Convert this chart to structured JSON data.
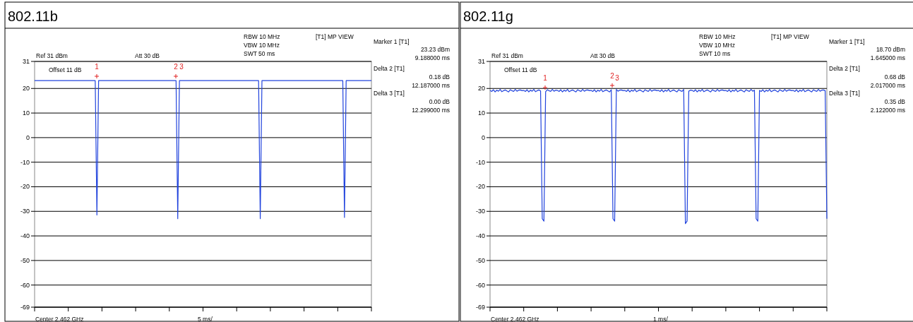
{
  "chart_data": [
    {
      "type": "line",
      "title": "802.11b",
      "categories": [
        null,
        null,
        null,
        null,
        null,
        null,
        null,
        null,
        null,
        null,
        null,
        null,
        null,
        null,
        null,
        null,
        null,
        null,
        null,
        null,
        null,
        null,
        null,
        null,
        null,
        null,
        null,
        null,
        null,
        null,
        null,
        null,
        null,
        null,
        null,
        null,
        null,
        null,
        null,
        null,
        null,
        null,
        null,
        null,
        null,
        null,
        null,
        null,
        null,
        null,
        null,
        null,
        null,
        null,
        null,
        null,
        null,
        null,
        null,
        null,
        null,
        null,
        null,
        null,
        null,
        null,
        null,
        null,
        null,
        null,
        null,
        null,
        null,
        null,
        null,
        null,
        null,
        null,
        null,
        null,
        null,
        null,
        null,
        null,
        null,
        null,
        null,
        null,
        null,
        null,
        null,
        null,
        null,
        null,
        null,
        null,
        null,
        null,
        null,
        null,
        null,
        null,
        null,
        null,
        null,
        null,
        null,
        null,
        null,
        null,
        null,
        null,
        null,
        null,
        null,
        null,
        null,
        null,
        null,
        null,
        null,
        null,
        null,
        null,
        null,
        null,
        null,
        null,
        null,
        null,
        null,
        null,
        null,
        null,
        null,
        null,
        null,
        null,
        null,
        null,
        null,
        null,
        null,
        null,
        null,
        null,
        null,
        null,
        null,
        null,
        null,
        null,
        null,
        null,
        null,
        null,
        null,
        null,
        null,
        null,
        null,
        null,
        null,
        null,
        null,
        null,
        null,
        null,
        null,
        null,
        null,
        null,
        null,
        null,
        null,
        null,
        null,
        null,
        null,
        null,
        null,
        null,
        null,
        null,
        null,
        null,
        null,
        null,
        null,
        null,
        null,
        null,
        null,
        null,
        null,
        null,
        null,
        null,
        null,
        null,
        null
      ],
      "ylim": [
        -69,
        31
      ],
      "yticks": [
        31,
        20,
        10,
        0,
        -10,
        -20,
        -30,
        -40,
        -50,
        -60,
        -69
      ],
      "grid": "y",
      "tick_labels": "y",
      "series": [
        {
          "color": "#2244dd",
          "values": [
            23.2,
            23.2,
            23.2,
            23.2,
            23.2,
            23.2,
            23.2,
            23.2,
            23.2,
            23.2,
            23.2,
            23.2,
            23.2,
            23.2,
            23.2,
            23.2,
            23.2,
            23.2,
            23.2,
            23.2,
            23.2,
            23.2,
            23.2,
            23.2,
            23.2,
            23.2,
            23.2,
            23.2,
            23.2,
            23.2,
            23.2,
            23.2,
            23.2,
            23.2,
            23.2,
            23.2,
            23.2,
            -31.5,
            23.2,
            23.2,
            23.2,
            23.2,
            23.2,
            23.2,
            23.2,
            23.2,
            23.2,
            23.2,
            23.2,
            23.2,
            23.2,
            23.2,
            23.2,
            23.2,
            23.2,
            23.2,
            23.2,
            23.2,
            23.2,
            23.2,
            23.2,
            23.2,
            23.2,
            23.2,
            23.2,
            23.2,
            23.2,
            23.2,
            23.2,
            23.2,
            23.2,
            23.2,
            23.2,
            23.2,
            23.2,
            23.2,
            23.2,
            23.2,
            23.2,
            23.2,
            23.2,
            23.2,
            23.2,
            23.2,
            23.2,
            -33,
            23.2,
            23.2,
            23.2,
            23.2,
            23.2,
            23.2,
            23.2,
            23.2,
            23.2,
            23.2,
            23.2,
            23.2,
            23.2,
            23.2,
            23.2,
            23.2,
            23.2,
            23.2,
            23.2,
            23.2,
            23.2,
            23.2,
            23.2,
            23.2,
            23.2,
            23.2,
            23.2,
            23.2,
            23.2,
            23.2,
            23.2,
            23.2,
            23.2,
            23.2,
            23.2,
            23.2,
            23.2,
            23.2,
            23.2,
            23.2,
            23.2,
            23.2,
            23.2,
            23.2,
            23.2,
            23.2,
            23.2,
            23.2,
            -33,
            23.2,
            23.2,
            23.2,
            23.2,
            23.2,
            23.2,
            23.2,
            23.2,
            23.2,
            23.2,
            23.2,
            23.2,
            23.2,
            23.2,
            23.2,
            23.2,
            23.2,
            23.2,
            23.2,
            23.2,
            23.2,
            23.2,
            23.2,
            23.2,
            23.2,
            23.2,
            23.2,
            23.2,
            23.2,
            23.2,
            23.2,
            23.2,
            23.2,
            23.2,
            23.2,
            23.2,
            23.2,
            23.2,
            23.2,
            23.2,
            23.2,
            23.2,
            23.2,
            23.2,
            23.2,
            23.2,
            23.2,
            23.2,
            23.2,
            -32.5,
            23.2,
            23.2,
            23.2,
            23.2,
            23.2,
            23.2,
            23.2,
            23.2,
            23.2,
            23.2,
            23.2,
            23.2,
            23.2,
            23.2,
            23.2,
            23.2
          ]
        }
      ],
      "annotations": [
        "RBW 10 MHz",
        "VBW 10 MHz",
        "SWT 50 ms",
        "[T1] MP VIEW",
        "Ref 31 dBm",
        "Att  30 dB",
        "Offset 11 dB",
        "Center 2.462 GHz",
        "5 ms/",
        "Marker 1 [T1]",
        "23.23 dBm",
        "9.188000 ms",
        "Delta 2 [T1]",
        "0.18 dB",
        "12.187000 ms",
        "Delta 3 [T1]",
        "0.00 dB",
        "12.299000 ms",
        "1",
        "2",
        "3"
      ]
    },
    {
      "type": "line",
      "title": "802.11g",
      "categories": [
        null,
        null,
        null,
        null,
        null,
        null,
        null,
        null,
        null,
        null,
        null,
        null,
        null,
        null,
        null,
        null,
        null,
        null,
        null,
        null,
        null,
        null,
        null,
        null,
        null,
        null,
        null,
        null,
        null,
        null,
        null,
        null,
        null,
        null,
        null,
        null,
        null,
        null,
        null,
        null,
        null,
        null,
        null,
        null,
        null,
        null,
        null,
        null,
        null,
        null,
        null,
        null,
        null,
        null,
        null,
        null,
        null,
        null,
        null,
        null,
        null,
        null,
        null,
        null,
        null,
        null,
        null,
        null,
        null,
        null,
        null,
        null,
        null,
        null,
        null,
        null,
        null,
        null,
        null,
        null,
        null,
        null,
        null,
        null,
        null,
        null,
        null,
        null,
        null,
        null,
        null,
        null,
        null,
        null,
        null,
        null,
        null,
        null,
        null,
        null,
        null,
        null,
        null,
        null,
        null,
        null,
        null,
        null,
        null,
        null,
        null,
        null,
        null,
        null,
        null,
        null,
        null,
        null,
        null,
        null,
        null,
        null,
        null,
        null,
        null,
        null,
        null,
        null,
        null,
        null,
        null,
        null,
        null,
        null,
        null,
        null,
        null,
        null,
        null,
        null,
        null,
        null,
        null,
        null,
        null,
        null,
        null,
        null,
        null,
        null,
        null,
        null,
        null,
        null,
        null,
        null,
        null,
        null,
        null,
        null,
        null,
        null,
        null,
        null,
        null,
        null,
        null,
        null,
        null,
        null,
        null,
        null,
        null,
        null,
        null,
        null,
        null,
        null,
        null,
        null,
        null,
        null,
        null,
        null,
        null,
        null,
        null,
        null,
        null,
        null,
        null,
        null,
        null,
        null,
        null,
        null,
        null,
        null,
        null,
        null,
        null
      ],
      "ylim": [
        -69,
        31
      ],
      "yticks": [
        31,
        20,
        10,
        0,
        -10,
        -20,
        -30,
        -40,
        -50,
        -60,
        -69
      ],
      "grid": "y",
      "tick_labels": "y",
      "series": [
        {
          "color": "#2244dd",
          "values": [
            19.2,
            18.8,
            19.5,
            18.6,
            19.3,
            18.9,
            19.6,
            18.7,
            19.1,
            19.4,
            19.0,
            18.6,
            19.5,
            19.1,
            18.8,
            19.6,
            18.9,
            19.3,
            19.4,
            19.1,
            19.2,
            18.8,
            19.5,
            18.6,
            19.3,
            18.9,
            19.6,
            18.7,
            19.1,
            19.4,
            19.0,
            -33,
            -34,
            18.7,
            19.5,
            19.1,
            18.8,
            19.6,
            18.9,
            19.3,
            19.2,
            18.8,
            19.5,
            18.6,
            19.3,
            18.9,
            19.6,
            18.7,
            19.1,
            19.4,
            19.0,
            18.6,
            19.5,
            19.1,
            18.8,
            19.6,
            18.9,
            19.3,
            19.4,
            19.1,
            19.2,
            18.8,
            19.5,
            18.6,
            19.3,
            18.9,
            19.6,
            18.7,
            19.1,
            19.4,
            19.0,
            18.6,
            19.5,
            -33,
            -34,
            19.6,
            18.9,
            19.3,
            19.4,
            19.1,
            19.2,
            18.8,
            19.5,
            18.6,
            19.3,
            18.9,
            19.6,
            18.7,
            19.1,
            19.4,
            19.0,
            18.6,
            19.5,
            19.1,
            18.8,
            19.6,
            18.9,
            19.3,
            19.4,
            19.1,
            19.2,
            18.8,
            19.5,
            18.6,
            19.3,
            18.9,
            19.6,
            18.7,
            19.1,
            19.4,
            19.0,
            18.6,
            19.5,
            19.1,
            18.8,
            19.6,
            -35,
            -34,
            18.9,
            19.3,
            19.2,
            18.8,
            19.5,
            18.6,
            19.3,
            18.9,
            19.6,
            18.7,
            19.1,
            19.4,
            19.0,
            18.6,
            19.5,
            19.1,
            18.8,
            19.6,
            18.9,
            19.3,
            19.4,
            19.1,
            19.2,
            18.8,
            19.5,
            18.6,
            19.3,
            18.9,
            19.6,
            18.7,
            19.1,
            19.4,
            19.0,
            18.6,
            19.5,
            19.1,
            18.8,
            19.6,
            18.9,
            19.3,
            -33,
            -34,
            19.2,
            18.8,
            19.5,
            18.6,
            19.3,
            18.9,
            19.6,
            18.7,
            19.1,
            19.4,
            19.0,
            18.6,
            19.5,
            19.1,
            18.8,
            19.6,
            18.9,
            19.3,
            19.4,
            19.1,
            19.2,
            18.8,
            19.5,
            18.6,
            19.3,
            18.9,
            19.6,
            18.7,
            19.1,
            19.4,
            19.0,
            18.6,
            19.5,
            19.1,
            18.8,
            19.6,
            18.9,
            19.3,
            19.4,
            19.1,
            -33
          ]
        }
      ],
      "annotations": [
        "RBW 10 MHz",
        "VBW 10 MHz",
        "SWT 10 ms",
        "[T1] MP VIEW",
        "Ref 31 dBm",
        "Att  30 dB",
        "Offset 11 dB",
        "Center 2.462 GHz",
        "1 ms/",
        "Marker 1 [T1]",
        "18.70 dBm",
        "1.645000 ms",
        "Delta 2 [T1]",
        "0.68 dB",
        "2.017000 ms",
        "Delta 3 [T1]",
        "0.35 dB",
        "2.122000 ms",
        "1",
        "2",
        "3"
      ]
    }
  ]
}
